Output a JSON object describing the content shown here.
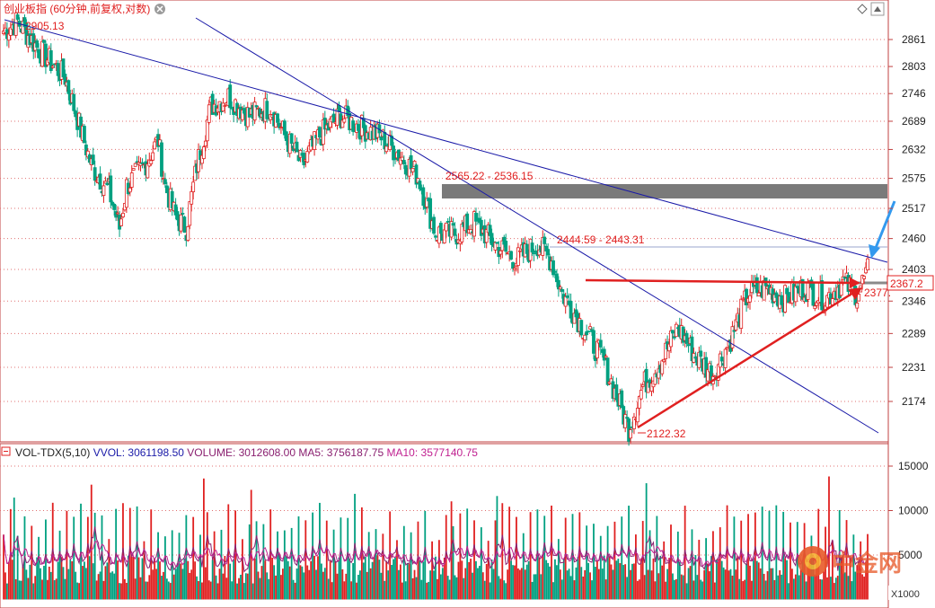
{
  "header": {
    "title": "创业板指 (60分钟,前复权,对数)",
    "price_box": "2367.2",
    "overflow_label": "2377."
  },
  "annotations": {
    "high_label": "2905.13",
    "low_label": "2122.32",
    "gap_label": "2565.22 - 2536.15",
    "level_label": "2444.59 - 2443.31"
  },
  "volume_legend": {
    "indicator": "VOL-TDX(5,10)",
    "vvol_label": "VVOL:",
    "vvol_value": "3061198.50",
    "volume_label": "VOLUME:",
    "volume_value": "3012608.00",
    "ma5_label": "MA5:",
    "ma5_value": "3756187.75",
    "ma10_label": "MA10:",
    "ma10_value": "3577140.75"
  },
  "watermark": {
    "text": "中金网",
    "unit": "X1000"
  },
  "colors": {
    "up": "#e02020",
    "down": "#00a080",
    "trendline": "#1a1aa8",
    "arrow_red": "#e02020",
    "arrow_blue": "#3399ee",
    "gap_box": "#7a7a7a",
    "grid": "#e07070",
    "ma5": "#8a2070",
    "ma10": "#c02090"
  },
  "chart_data": {
    "type": "candlestick",
    "price_axis": {
      "scale": "log",
      "ticks": [
        2861,
        2803,
        2746,
        2689,
        2632,
        2575,
        2517,
        2460,
        2403,
        2346,
        2289,
        2231,
        2174
      ]
    },
    "volume_axis": {
      "ticks": [
        15000,
        10000,
        5000
      ]
    },
    "key_levels": {
      "high": 2905.13,
      "low": 2122.32,
      "gap_top": 2565.22,
      "gap_bottom": 2536.15,
      "resistance_top": 2444.59,
      "resistance_bottom": 2443.31,
      "last_price": 2367.2
    },
    "anchors": [
      [
        0,
        2880
      ],
      [
        8,
        2900
      ],
      [
        20,
        2840
      ],
      [
        35,
        2780
      ],
      [
        50,
        2600
      ],
      [
        60,
        2550
      ],
      [
        66,
        2480
      ],
      [
        70,
        2560
      ],
      [
        80,
        2600
      ],
      [
        88,
        2650
      ],
      [
        92,
        2560
      ],
      [
        98,
        2500
      ],
      [
        104,
        2480
      ],
      [
        110,
        2600
      ],
      [
        118,
        2720
      ],
      [
        128,
        2740
      ],
      [
        140,
        2700
      ],
      [
        152,
        2720
      ],
      [
        160,
        2660
      ],
      [
        170,
        2600
      ],
      [
        180,
        2660
      ],
      [
        192,
        2700
      ],
      [
        202,
        2680
      ],
      [
        214,
        2660
      ],
      [
        226,
        2620
      ],
      [
        236,
        2580
      ],
      [
        246,
        2470
      ],
      [
        258,
        2470
      ],
      [
        268,
        2490
      ],
      [
        280,
        2450
      ],
      [
        292,
        2420
      ],
      [
        304,
        2450
      ],
      [
        312,
        2420
      ],
      [
        318,
        2360
      ],
      [
        326,
        2320
      ],
      [
        334,
        2280
      ],
      [
        342,
        2240
      ],
      [
        348,
        2190
      ],
      [
        356,
        2130
      ],
      [
        364,
        2200
      ],
      [
        374,
        2240
      ],
      [
        384,
        2300
      ],
      [
        394,
        2250
      ],
      [
        404,
        2220
      ],
      [
        414,
        2280
      ],
      [
        424,
        2360
      ],
      [
        434,
        2370
      ],
      [
        444,
        2350
      ],
      [
        456,
        2370
      ],
      [
        468,
        2350
      ],
      [
        478,
        2380
      ],
      [
        486,
        2360
      ],
      [
        492,
        2400
      ]
    ],
    "candle_count": 493
  }
}
